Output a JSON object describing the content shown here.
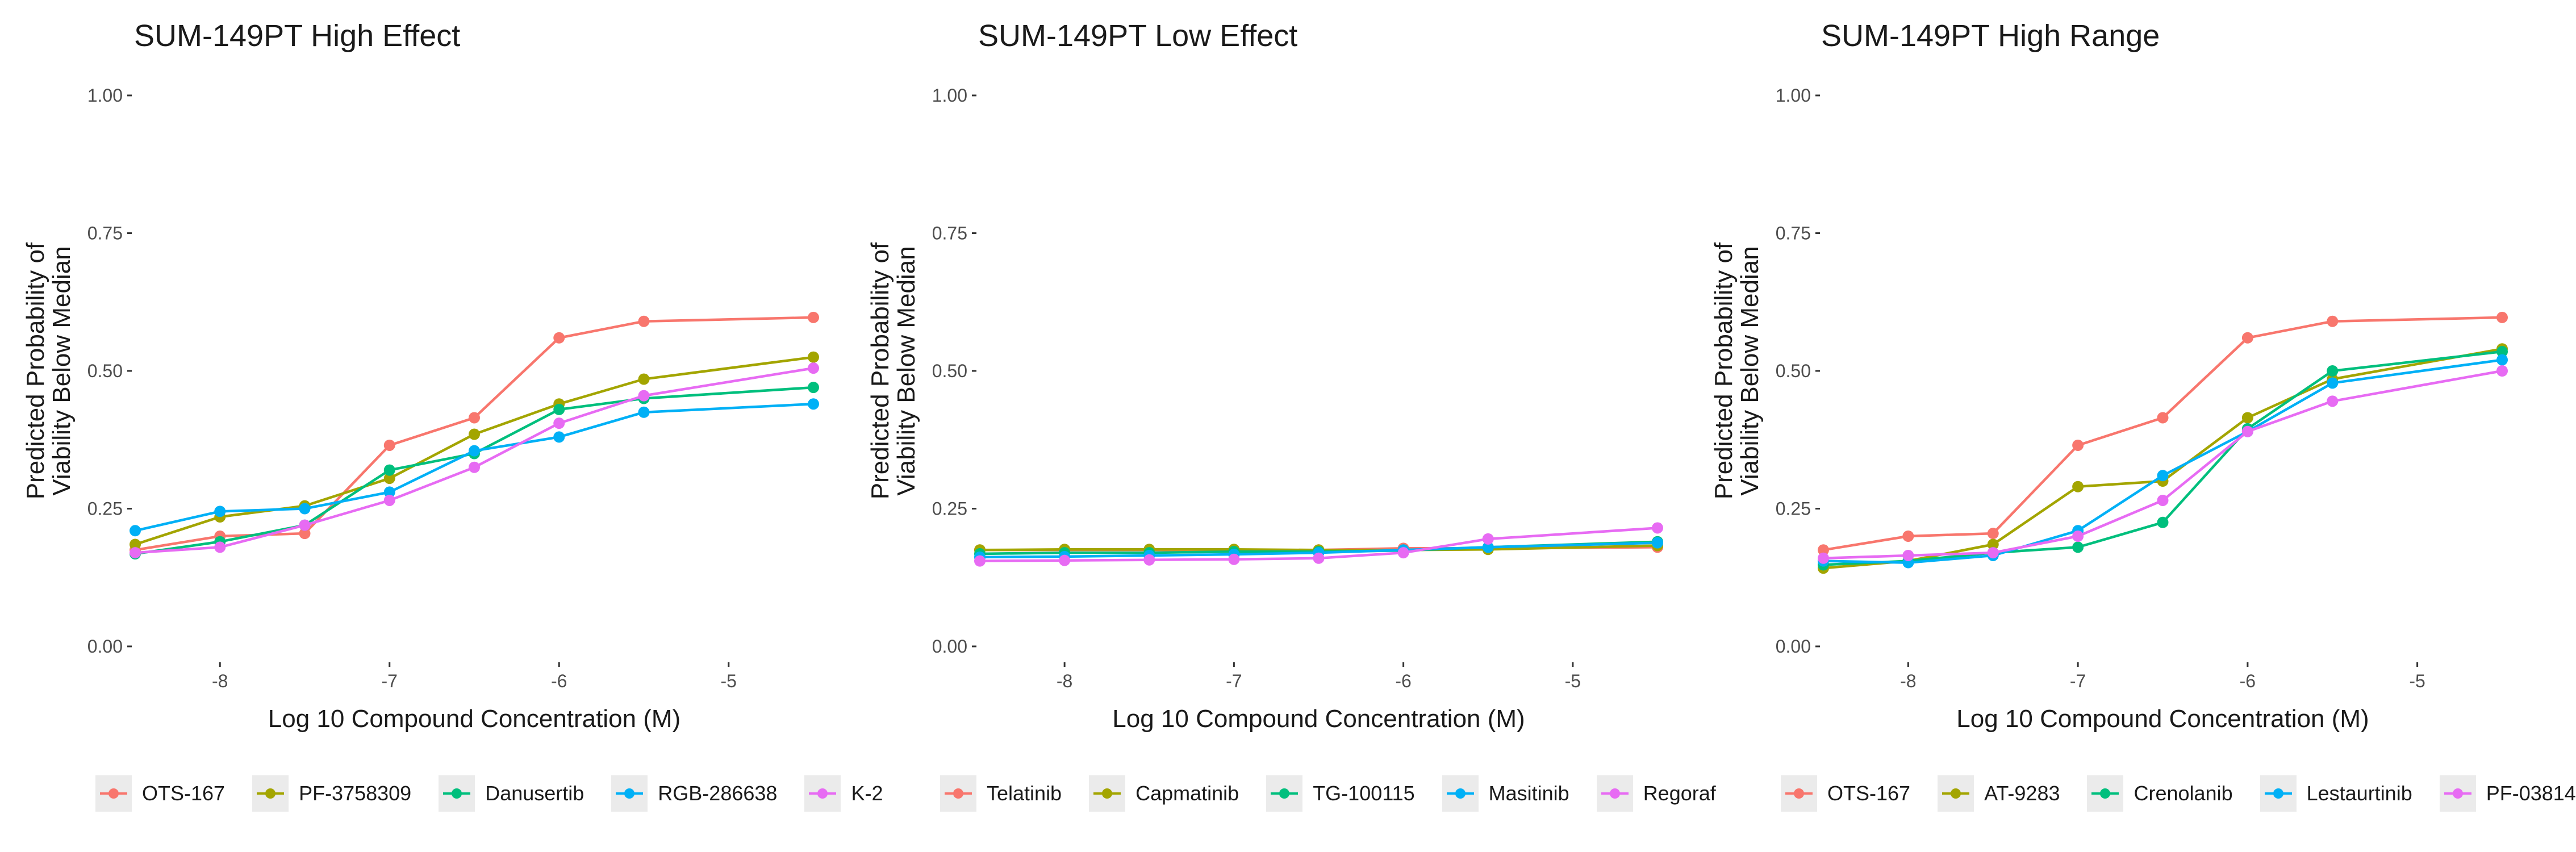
{
  "chart_data": [
    {
      "type": "line",
      "title": "SUM-149PT High Effect",
      "xlabel": "Log 10 Compound Concentration (M)",
      "ylabel": "Predicted Probability of Viability Below Median",
      "ylabel_lines": [
        "Predicted Probability of",
        "Viability Below Median"
      ],
      "x": [
        -8.5,
        -8.0,
        -7.5,
        -7.0,
        -6.5,
        -6.0,
        -5.5,
        -4.5
      ],
      "xlim": [
        -8.5,
        -4.5
      ],
      "ylim": [
        0,
        1
      ],
      "xticks": [
        -8,
        -7,
        -6,
        -5
      ],
      "xtick_labels": [
        "-8",
        "-7",
        "-6",
        "-5"
      ],
      "yticks": [
        0,
        0.25,
        0.5,
        0.75,
        1
      ],
      "ytick_labels": [
        "0.00",
        "0.25",
        "0.50",
        "0.75",
        "1.00"
      ],
      "legend_position": "bottom",
      "legend": [
        "OTS-167",
        "PF-3758309",
        "Danusertib",
        "RGB-286638",
        "K-2"
      ],
      "series": [
        {
          "name": "OTS-167",
          "color": "#F8766D",
          "values": [
            0.175,
            0.2,
            0.205,
            0.365,
            0.415,
            0.56,
            0.59,
            0.597
          ]
        },
        {
          "name": "PF-3758309",
          "color": "#A3A500",
          "values": [
            0.185,
            0.235,
            0.255,
            0.305,
            0.385,
            0.44,
            0.485,
            0.525
          ]
        },
        {
          "name": "Danusertib",
          "color": "#00BF7D",
          "values": [
            0.168,
            0.19,
            0.22,
            0.32,
            0.35,
            0.43,
            0.45,
            0.47
          ]
        },
        {
          "name": "RGB-286638",
          "color": "#00B0F6",
          "values": [
            0.21,
            0.245,
            0.25,
            0.28,
            0.355,
            0.38,
            0.425,
            0.44
          ]
        },
        {
          "name": "K-2",
          "color": "#E76BF3",
          "values": [
            0.17,
            0.18,
            0.22,
            0.265,
            0.325,
            0.405,
            0.455,
            0.505
          ]
        }
      ]
    },
    {
      "type": "line",
      "title": "SUM-149PT Low Effect",
      "xlabel": "Log 10 Compound Concentration (M)",
      "ylabel": "Predicted Probability of Viability Below Median",
      "ylabel_lines": [
        "Predicted Probability of",
        "Viability Below Median"
      ],
      "x": [
        -8.5,
        -8.0,
        -7.5,
        -7.0,
        -6.5,
        -6.0,
        -5.5,
        -4.5
      ],
      "xlim": [
        -8.5,
        -4.5
      ],
      "ylim": [
        0,
        1
      ],
      "xticks": [
        -8,
        -7,
        -6,
        -5
      ],
      "xtick_labels": [
        "-8",
        "-7",
        "-6",
        "-5"
      ],
      "yticks": [
        0,
        0.25,
        0.5,
        0.75,
        1
      ],
      "ytick_labels": [
        "0.00",
        "0.25",
        "0.50",
        "0.75",
        "1.00"
      ],
      "legend_position": "bottom",
      "legend": [
        "Telatinib",
        "Capmatinib",
        "TG-100115",
        "Masitinib",
        "Regoraf"
      ],
      "series": [
        {
          "name": "Telatinib",
          "color": "#F8766D",
          "values": [
            0.175,
            0.175,
            0.175,
            0.175,
            0.175,
            0.178,
            0.178,
            0.18
          ]
        },
        {
          "name": "Capmatinib",
          "color": "#A3A500",
          "values": [
            0.175,
            0.176,
            0.176,
            0.176,
            0.175,
            0.175,
            0.176,
            0.183
          ]
        },
        {
          "name": "TG-100115",
          "color": "#00BF7D",
          "values": [
            0.168,
            0.17,
            0.17,
            0.172,
            0.172,
            0.174,
            0.18,
            0.19
          ]
        },
        {
          "name": "Masitinib",
          "color": "#00B0F6",
          "values": [
            0.162,
            0.163,
            0.165,
            0.167,
            0.17,
            0.175,
            0.18,
            0.188
          ]
        },
        {
          "name": "Regoraf",
          "color": "#E76BF3",
          "values": [
            0.155,
            0.156,
            0.157,
            0.158,
            0.16,
            0.17,
            0.195,
            0.215
          ]
        }
      ]
    },
    {
      "type": "line",
      "title": "SUM-149PT High Range",
      "xlabel": "Log 10 Compound Concentration (M)",
      "ylabel": "Predicted Probability of Viability Below Median",
      "ylabel_lines": [
        "Predicted Probability of",
        "Viability Below Median"
      ],
      "x": [
        -8.5,
        -8.0,
        -7.5,
        -7.0,
        -6.5,
        -6.0,
        -5.5,
        -4.5
      ],
      "xlim": [
        -8.5,
        -4.5
      ],
      "ylim": [
        0,
        1
      ],
      "xticks": [
        -8,
        -7,
        -6,
        -5
      ],
      "xtick_labels": [
        "-8",
        "-7",
        "-6",
        "-5"
      ],
      "yticks": [
        0,
        0.25,
        0.5,
        0.75,
        1
      ],
      "ytick_labels": [
        "0.00",
        "0.25",
        "0.50",
        "0.75",
        "1.00"
      ],
      "legend_position": "bottom",
      "legend": [
        "OTS-167",
        "AT-9283",
        "Crenolanib",
        "Lestaurtinib",
        "PF-03814"
      ],
      "series": [
        {
          "name": "OTS-167",
          "color": "#F8766D",
          "values": [
            0.175,
            0.2,
            0.205,
            0.365,
            0.415,
            0.56,
            0.59,
            0.597
          ]
        },
        {
          "name": "AT-9283",
          "color": "#A3A500",
          "values": [
            0.142,
            0.155,
            0.185,
            0.29,
            0.3,
            0.415,
            0.485,
            0.54
          ]
        },
        {
          "name": "Crenolanib",
          "color": "#00BF7D",
          "values": [
            0.148,
            0.155,
            0.17,
            0.18,
            0.225,
            0.395,
            0.5,
            0.535
          ]
        },
        {
          "name": "Lestaurtinib",
          "color": "#00B0F6",
          "values": [
            0.155,
            0.152,
            0.165,
            0.21,
            0.31,
            0.39,
            0.478,
            0.52
          ]
        },
        {
          "name": "PF-03814",
          "color": "#E76BF3",
          "values": [
            0.16,
            0.165,
            0.17,
            0.2,
            0.265,
            0.39,
            0.445,
            0.5
          ]
        }
      ]
    }
  ]
}
